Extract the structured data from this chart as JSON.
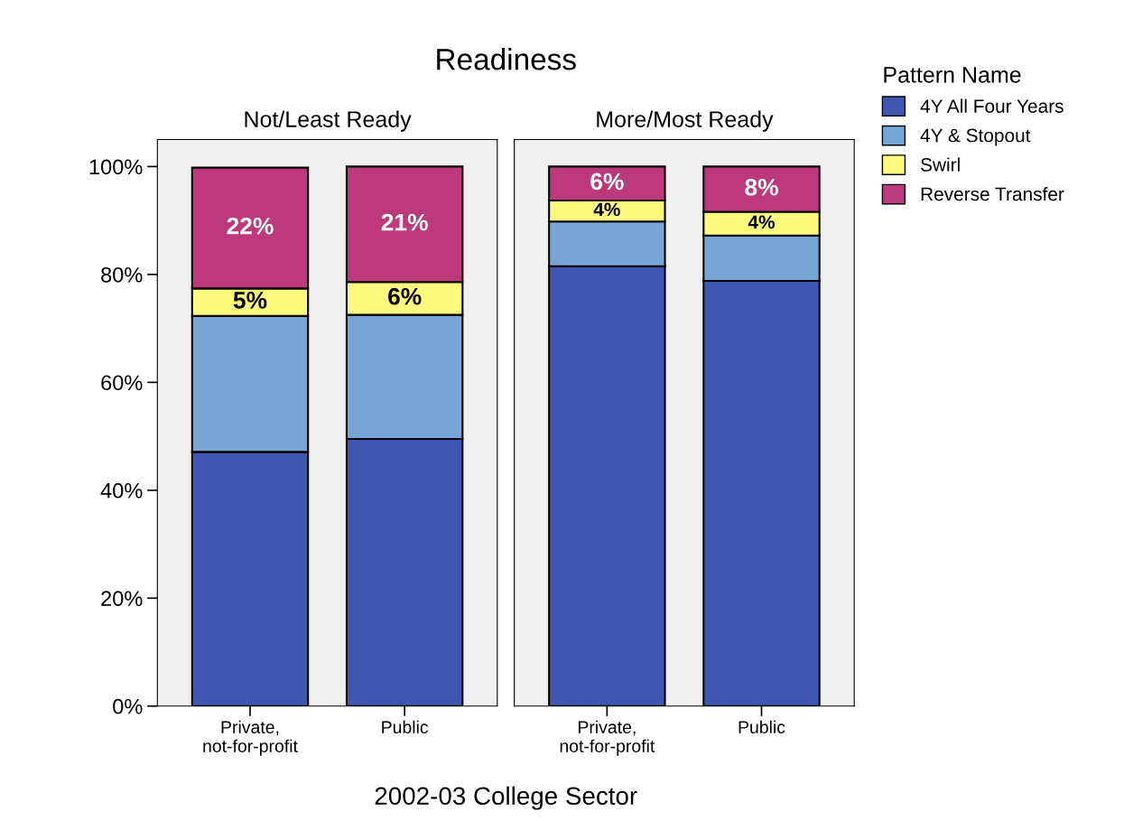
{
  "chart_data": [
    {
      "type": "bar",
      "stacked": true,
      "title": "Readiness",
      "subtitle": "Not/Least Ready",
      "xlabel": "2002-03 College Sector",
      "legend": "right",
      "legend_title": "Pattern Name",
      "grid": false,
      "categories": [
        "Private,\nnot-for-profit",
        "Public"
      ],
      "ylim": [
        0,
        105
      ],
      "yticks": [
        {
          "value": 0,
          "label": "0%"
        },
        {
          "value": 20,
          "label": "20%"
        },
        {
          "value": 40,
          "label": "40%"
        },
        {
          "value": 60,
          "label": "60%"
        },
        {
          "value": 80,
          "label": "80%"
        },
        {
          "value": 100,
          "label": "100%"
        }
      ],
      "series": [
        {
          "name": "4Y All Four Years",
          "color": "#3f57b0",
          "values": [
            47.1,
            49.5
          ]
        },
        {
          "name": "4Y & Stopout",
          "color": "#78a6d4",
          "values": [
            25.2,
            23.0
          ],
          "value_labels": [
            null,
            null
          ]
        },
        {
          "name": "Swirl",
          "color": "#fdfa7e",
          "values": [
            5.1,
            6.1
          ],
          "value_labels": [
            "5%",
            "6%"
          ]
        },
        {
          "name": "Reverse Transfer",
          "color": "#bc3a7c",
          "values": [
            22.4,
            21.4
          ],
          "value_labels": [
            "22%",
            "21%"
          ]
        }
      ]
    },
    {
      "type": "bar",
      "stacked": true,
      "subtitle": "More/Most Ready",
      "grid": false,
      "tick_labels": "x",
      "categories": [
        "Private,\nnot-for-profit",
        "Public"
      ],
      "ylim": [
        0,
        105
      ],
      "series": [
        {
          "color": "#3f57b0",
          "values": [
            81.5,
            78.8
          ]
        },
        {
          "color": "#78a6d4",
          "values": [
            8.3,
            8.4
          ],
          "value_labels": [
            null,
            null
          ]
        },
        {
          "color": "#fdfa7e",
          "values": [
            3.9,
            4.4
          ],
          "value_labels": [
            "4%",
            "4%"
          ]
        },
        {
          "color": "#bc3a7c",
          "values": [
            6.3,
            8.4
          ],
          "value_labels": [
            "6%",
            "8%"
          ]
        }
      ]
    }
  ]
}
